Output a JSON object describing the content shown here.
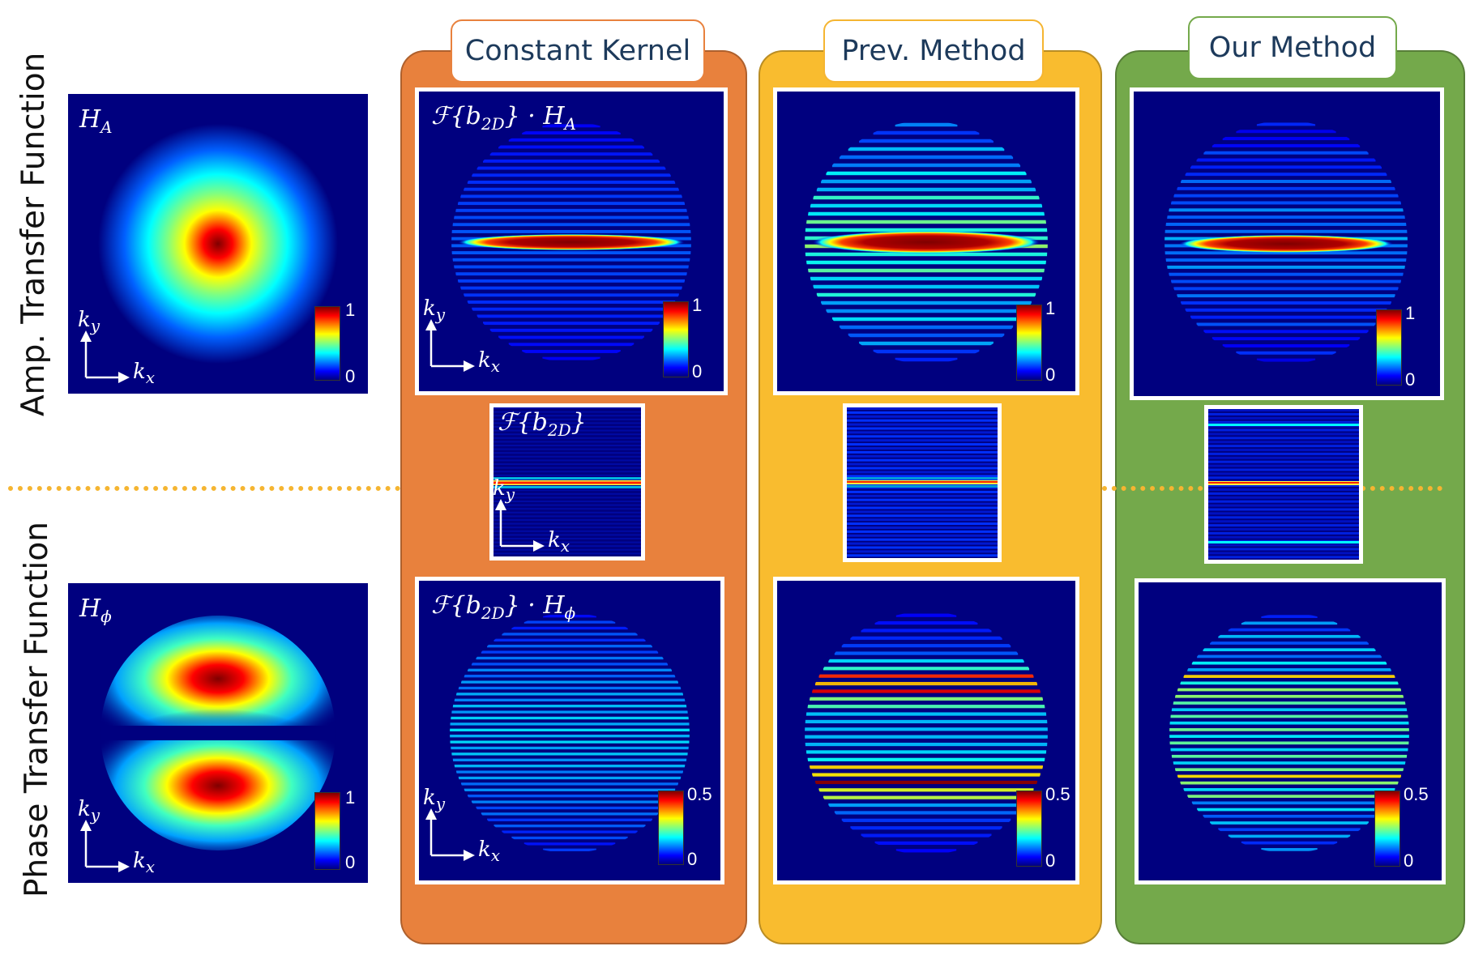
{
  "rows": {
    "top_label": "Amp. Transfer Function",
    "bottom_label": "Phase Transfer Function"
  },
  "columns": [
    {
      "key": "constant",
      "title": "Constant Kernel",
      "fill": "#e8813d",
      "border": "#e8813d"
    },
    {
      "key": "prev",
      "title": "Prev. Method",
      "fill": "#f9bc2f",
      "border": "#f5b531"
    },
    {
      "key": "ours",
      "title": "Our Method",
      "fill": "#74a94b",
      "border": "#74a94b"
    }
  ],
  "labels": {
    "ha": "H",
    "ha_sub": "A",
    "hphi": "H",
    "hphi_sub": "ϕ",
    "fb_prefix": "ℱ{b",
    "fb_sub": "2D",
    "fb_suffix": "}",
    "dot": " · ",
    "kx": "k",
    "kx_sub": "x",
    "ky": "k",
    "ky_sub": "y"
  },
  "colorbars": {
    "amp_max": "1",
    "amp_min": "0",
    "phase_left_max": "1",
    "phase_left_min": "0",
    "phase_max": "0.5",
    "phase_min": "0"
  },
  "colors": {
    "jet_low": "#00007f",
    "jet_high": "#7f0000",
    "divider": "#f5b531"
  }
}
